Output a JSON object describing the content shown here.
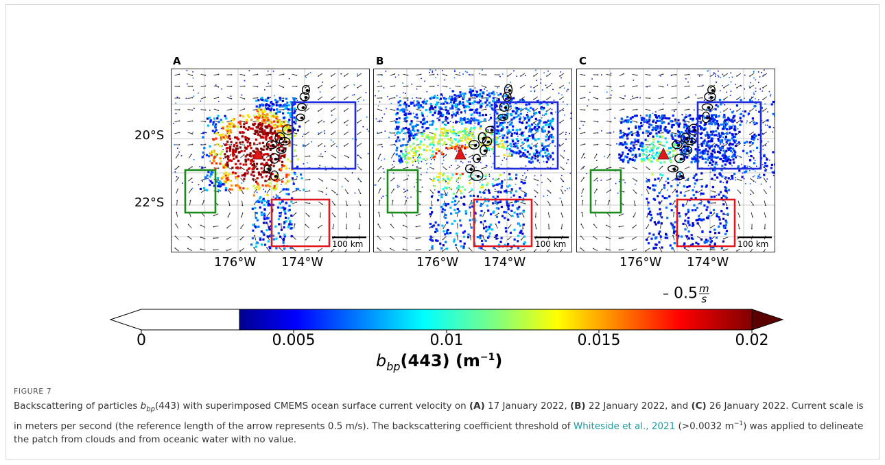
{
  "figure": {
    "panels": [
      {
        "letter": "A"
      },
      {
        "letter": "B"
      },
      {
        "letter": "C"
      }
    ],
    "lat_labels": [
      "20°S",
      "22°S"
    ],
    "lon_labels": [
      "176°W",
      "174°W"
    ],
    "scale_bar_label": "100 km",
    "reference_arrow": "0.5",
    "reference_arrow_unit": "m/s",
    "colors": {
      "box_green": "#1a8a1a",
      "box_blue": "#1f2bdc",
      "box_red": "#e0181e",
      "volcano_marker": "#e01818"
    }
  },
  "chart_data": {
    "type": "heatmap",
    "colorbar": {
      "ticks": [
        "0",
        "0.005",
        "0.01",
        "0.015",
        "0.02"
      ],
      "range": [
        0,
        0.02
      ],
      "threshold": 0.0032,
      "colormap": "jet",
      "extend": "both",
      "label_main": "b",
      "label_sub": "bp",
      "label_rest": "(443) (m",
      "label_sup": "−1",
      "label_close": ")"
    }
  },
  "caption": {
    "figure_number": "FIGURE 7",
    "p1": "Backscattering of particles ",
    "p1_b": "b",
    "p1_sub": "bp",
    "p2": "(443) with superimposed CMEMS ocean surface current velocity on ",
    "pa": "(A)",
    "p3": " 17 January 2022, ",
    "pb": "(B)",
    "p4": " 22 January 2022, and ",
    "pc": "(C)",
    "p5": " 26 January 2022. Current scale is in meters per second (the reference length of the arrow represents 0.5 m/s). The backscattering coefficient threshold of ",
    "link": "Whiteside et al., 2021",
    "p6": " (>0.0032 m",
    "p6_sup": "−1",
    "p7": ") was applied to delineate the patch from clouds and from oceanic water with no value."
  }
}
